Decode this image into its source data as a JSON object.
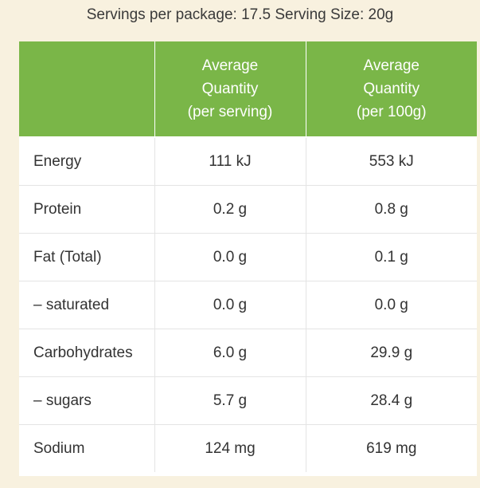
{
  "caption": "Servings per package: 17.5 Serving Size: 20g",
  "header": {
    "col1": "",
    "col2": [
      "Average",
      "Quantity",
      "(per serving)"
    ],
    "col3": [
      "Average",
      "Quantity",
      "(per 100g)"
    ]
  },
  "rows": [
    {
      "nutrient": "Energy",
      "per_serving": "111 kJ",
      "per_100g": "553 kJ"
    },
    {
      "nutrient": "Protein",
      "per_serving": "0.2 g",
      "per_100g": "0.8 g"
    },
    {
      "nutrient": "Fat (Total)",
      "per_serving": "0.0 g",
      "per_100g": "0.1 g"
    },
    {
      "nutrient": "– saturated",
      "per_serving": "0.0 g",
      "per_100g": "0.0 g"
    },
    {
      "nutrient": "Carbohydrates",
      "per_serving": "6.0 g",
      "per_100g": "29.9 g"
    },
    {
      "nutrient": "– sugars",
      "per_serving": "5.7 g",
      "per_100g": "28.4 g"
    },
    {
      "nutrient": "Sodium",
      "per_serving": "124 mg",
      "per_100g": "619 mg"
    }
  ],
  "colors": {
    "background": "#f8f1df",
    "header": "#7ab648",
    "header_text": "#ffffff",
    "text": "#333333",
    "grid": "#e4e4e4"
  }
}
